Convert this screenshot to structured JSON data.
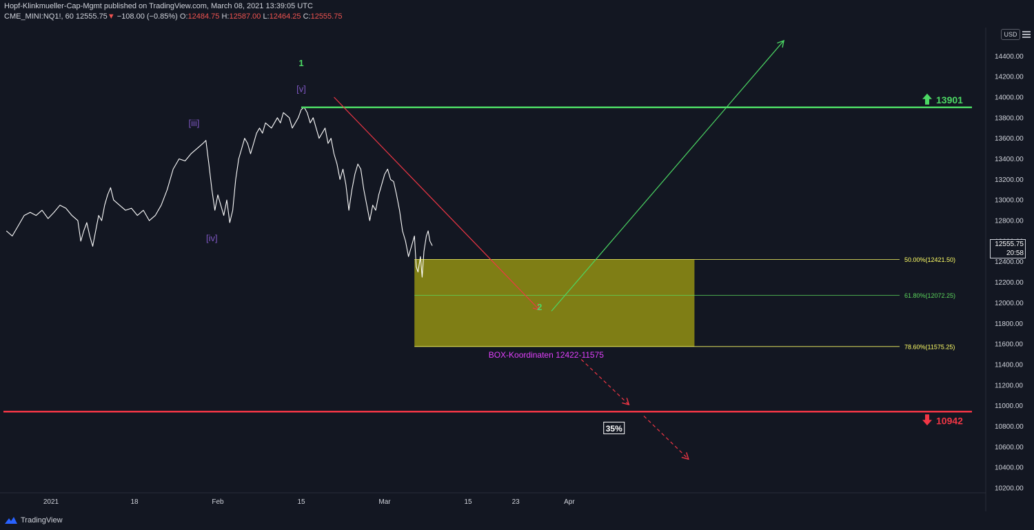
{
  "header": {
    "line1": "Hopf-Klinkmueller-Cap-Mgmt published on TradingView.com, March 08, 2021 13:39:05 UTC",
    "symbol": "CME_MINI:NQ1!, 60",
    "last": "12555.75",
    "change": "−108.00 (−0.85%)",
    "o_label": "O:",
    "o": "12484.75",
    "h_label": "H:",
    "h": "12587.00",
    "l_label": "L:",
    "l": "12464.25",
    "c_label": "C:",
    "c": "12555.75"
  },
  "axis": {
    "currency": "USD",
    "current_price": "12555.75",
    "countdown": "20:58"
  },
  "footer": {
    "brand": "TradingView"
  },
  "colors": {
    "background": "#131722",
    "price_line": "#ffffff",
    "green": "#4cd964",
    "red": "#f23645",
    "wave_label": "#7e57c2",
    "box_fill": "#8c8a14",
    "fib_yellow": "#ffff66",
    "fib_green": "#5cd65c",
    "magenta": "#e040fb"
  },
  "chart_data": {
    "type": "line",
    "ylim": [
      10200,
      14600
    ],
    "y_ticks": [
      10200,
      10400,
      10600,
      10800,
      11000,
      11200,
      11400,
      11600,
      11800,
      12000,
      12200,
      12400,
      12600,
      12800,
      13000,
      13200,
      13400,
      13600,
      13800,
      14000,
      14200,
      14400
    ],
    "x_ticks": [
      {
        "label": "2021",
        "day": 4
      },
      {
        "label": "18",
        "day": 18
      },
      {
        "label": "Feb",
        "day": 32
      },
      {
        "label": "15",
        "day": 46
      },
      {
        "label": "Mar",
        "day": 60
      },
      {
        "label": "15",
        "day": 74
      },
      {
        "label": "23",
        "day": 82
      },
      {
        "label": "Apr",
        "day": 91
      }
    ],
    "price_series": [
      [
        -3.5,
        12700
      ],
      [
        -2.5,
        12650
      ],
      [
        -1.5,
        12750
      ],
      [
        -0.5,
        12850
      ],
      [
        0.5,
        12880
      ],
      [
        1.5,
        12850
      ],
      [
        2.5,
        12900
      ],
      [
        3.5,
        12820
      ],
      [
        4.5,
        12880
      ],
      [
        5.5,
        12950
      ],
      [
        6.5,
        12920
      ],
      [
        7.5,
        12850
      ],
      [
        8.5,
        12800
      ],
      [
        9.0,
        12600
      ],
      [
        9.5,
        12700
      ],
      [
        10.0,
        12780
      ],
      [
        10.5,
        12650
      ],
      [
        11.0,
        12550
      ],
      [
        11.5,
        12700
      ],
      [
        12.0,
        12850
      ],
      [
        12.5,
        12800
      ],
      [
        13.0,
        12950
      ],
      [
        13.5,
        13050
      ],
      [
        14.0,
        13120
      ],
      [
        14.5,
        13000
      ],
      [
        15.5,
        12950
      ],
      [
        16.5,
        12900
      ],
      [
        17.5,
        12920
      ],
      [
        18.5,
        12850
      ],
      [
        19.5,
        12900
      ],
      [
        20.5,
        12800
      ],
      [
        21.5,
        12850
      ],
      [
        22.5,
        12950
      ],
      [
        23.5,
        13100
      ],
      [
        24.5,
        13300
      ],
      [
        25.5,
        13400
      ],
      [
        26.5,
        13380
      ],
      [
        27.5,
        13450
      ],
      [
        28.5,
        13500
      ],
      [
        29.5,
        13550
      ],
      [
        30.0,
        13580
      ],
      [
        30.5,
        13350
      ],
      [
        31.0,
        13100
      ],
      [
        31.5,
        12900
      ],
      [
        32.0,
        13050
      ],
      [
        32.5,
        12950
      ],
      [
        33.0,
        12850
      ],
      [
        33.5,
        13000
      ],
      [
        34.0,
        12780
      ],
      [
        34.5,
        12900
      ],
      [
        35.0,
        13200
      ],
      [
        35.5,
        13400
      ],
      [
        36.0,
        13500
      ],
      [
        36.5,
        13600
      ],
      [
        37.0,
        13550
      ],
      [
        37.5,
        13450
      ],
      [
        38.0,
        13550
      ],
      [
        38.5,
        13650
      ],
      [
        39.0,
        13700
      ],
      [
        39.5,
        13650
      ],
      [
        40.0,
        13750
      ],
      [
        41.0,
        13700
      ],
      [
        42.0,
        13800
      ],
      [
        42.5,
        13750
      ],
      [
        43.0,
        13850
      ],
      [
        44.0,
        13800
      ],
      [
        44.5,
        13700
      ],
      [
        45.0,
        13750
      ],
      [
        45.5,
        13800
      ],
      [
        46.0,
        13880
      ],
      [
        46.5,
        13901
      ],
      [
        47.0,
        13850
      ],
      [
        47.5,
        13750
      ],
      [
        48.0,
        13800
      ],
      [
        48.5,
        13700
      ],
      [
        49.0,
        13600
      ],
      [
        49.5,
        13650
      ],
      [
        50.0,
        13700
      ],
      [
        50.5,
        13550
      ],
      [
        51.0,
        13600
      ],
      [
        51.5,
        13450
      ],
      [
        52.0,
        13350
      ],
      [
        52.5,
        13200
      ],
      [
        53.0,
        13300
      ],
      [
        53.5,
        13150
      ],
      [
        54.0,
        12900
      ],
      [
        54.5,
        13100
      ],
      [
        55.0,
        13250
      ],
      [
        55.5,
        13350
      ],
      [
        56.0,
        13300
      ],
      [
        56.5,
        13100
      ],
      [
        57.0,
        12950
      ],
      [
        57.5,
        12800
      ],
      [
        58.0,
        12950
      ],
      [
        58.5,
        12900
      ],
      [
        59.0,
        13050
      ],
      [
        59.5,
        13150
      ],
      [
        60.0,
        13250
      ],
      [
        60.5,
        13300
      ],
      [
        61.0,
        13200
      ],
      [
        61.5,
        13180
      ],
      [
        62.0,
        13050
      ],
      [
        62.5,
        12900
      ],
      [
        63.0,
        12700
      ],
      [
        63.5,
        12600
      ],
      [
        64.0,
        12450
      ],
      [
        64.5,
        12550
      ],
      [
        65.0,
        12650
      ],
      [
        65.3,
        12350
      ],
      [
        65.6,
        12300
      ],
      [
        66.0,
        12450
      ],
      [
        66.3,
        12250
      ],
      [
        66.6,
        12500
      ],
      [
        67.0,
        12650
      ],
      [
        67.3,
        12700
      ],
      [
        67.6,
        12600
      ],
      [
        68.0,
        12556
      ]
    ],
    "annotations": {
      "wave_labels": [
        {
          "text": "1",
          "day": 46,
          "price": 14300,
          "color": "green"
        },
        {
          "text": "[v]",
          "day": 46,
          "price": 14050,
          "color": "purple"
        },
        {
          "text": "[iii]",
          "day": 28,
          "price": 13720,
          "color": "purple"
        },
        {
          "text": "[iv]",
          "day": 31,
          "price": 12600,
          "color": "purple"
        },
        {
          "text": "2",
          "day": 86,
          "price": 11930,
          "color": "green"
        }
      ],
      "resistance": {
        "price": 13901,
        "label": "13901"
      },
      "support": {
        "price": 10942,
        "label": "10942"
      },
      "box": {
        "top": 12421.5,
        "bottom": 11575.25,
        "start_day": 65,
        "end_day": 112
      },
      "fib_levels": [
        {
          "label": "50.00%(12421.50)",
          "price": 12421.5,
          "color": "yellow"
        },
        {
          "label": "61.80%(12072.25)",
          "price": 12072.25,
          "color": "green"
        },
        {
          "label": "78.60%(11575.25)",
          "price": 11575.25,
          "color": "yellow"
        }
      ],
      "box_caption": "BOX-Koordinaten 12422-11575",
      "percent_label": "35%",
      "arrows": [
        {
          "from": [
            51.5,
            14000
          ],
          "to": [
            86,
            11930
          ],
          "color": "red",
          "style": "solid"
        },
        {
          "from": [
            88,
            11920
          ],
          "to": [
            127,
            14550
          ],
          "color": "green",
          "style": "solid"
        },
        {
          "from": [
            93,
            11450
          ],
          "to": [
            101,
            11010
          ],
          "color": "red",
          "style": "dashed"
        },
        {
          "from": [
            103.5,
            10900
          ],
          "to": [
            111,
            10480
          ],
          "color": "red",
          "style": "dashed"
        }
      ]
    }
  }
}
